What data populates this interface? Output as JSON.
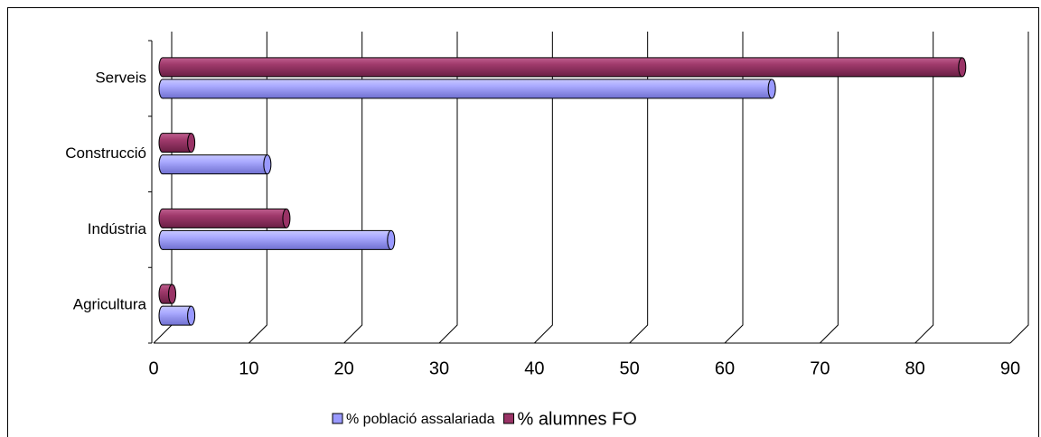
{
  "chart_data": {
    "type": "bar",
    "orientation": "horizontal",
    "categories": [
      "Agricultura",
      "Indústria",
      "Construcció",
      "Serveis"
    ],
    "series": [
      {
        "name": "% població assalariada",
        "color": "#9999ff",
        "values": [
          3,
          24,
          11,
          64
        ]
      },
      {
        "name": "% alumnes FO",
        "color": "#993366",
        "values": [
          1,
          13,
          3,
          84
        ]
      }
    ],
    "xlim": [
      0,
      90
    ],
    "xticks": [
      0,
      10,
      20,
      30,
      40,
      50,
      60,
      70,
      80,
      90
    ],
    "grid": true,
    "legend": "bottom"
  }
}
